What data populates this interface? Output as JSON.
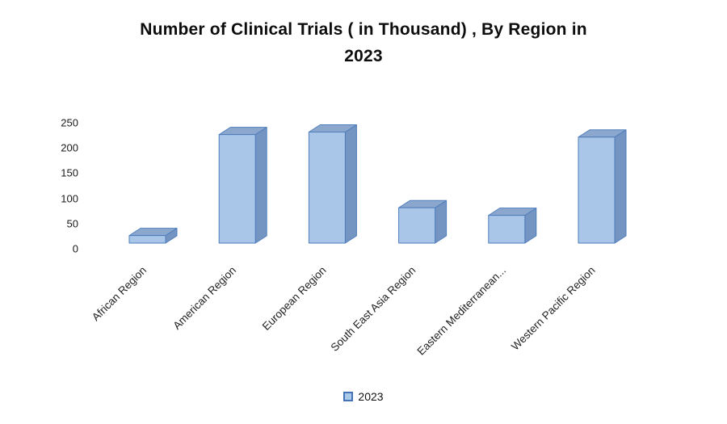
{
  "title": {
    "text": "Number of Clinical Trials ( in Thousand) , By Region in 2023",
    "lines": [
      "Number of Clinical Trials ( in Thousand) , By Region in",
      "2023"
    ]
  },
  "chart_data": {
    "type": "bar",
    "style": "3d-box",
    "title": "Number of Clinical Trials ( in Thousand) , By Region in 2023",
    "categories": [
      "African Region",
      "American Region",
      "European Region",
      "South East Asia Region",
      "Eastern Mediterranean...",
      "Western Pacific Region"
    ],
    "series": [
      {
        "name": "2023",
        "values": [
          15,
          215,
          220,
          70,
          55,
          210
        ]
      }
    ],
    "xlabel": "",
    "ylabel": "",
    "ylim": [
      0,
      250
    ],
    "yticks": [
      0,
      50,
      100,
      150,
      200,
      250
    ],
    "grid": false,
    "axis_lines": false,
    "legend_position": "bottom",
    "x_tick_rotation_deg": 45,
    "colors": {
      "bar_front": "#a9c5e8",
      "bar_top": "#8ca7ce",
      "bar_side": "#7494c2",
      "bar_border": "#4e7ebc"
    }
  },
  "legend": {
    "label": "2023",
    "swatch_fill": "#a9c9e9",
    "swatch_border": "#4472b8"
  }
}
